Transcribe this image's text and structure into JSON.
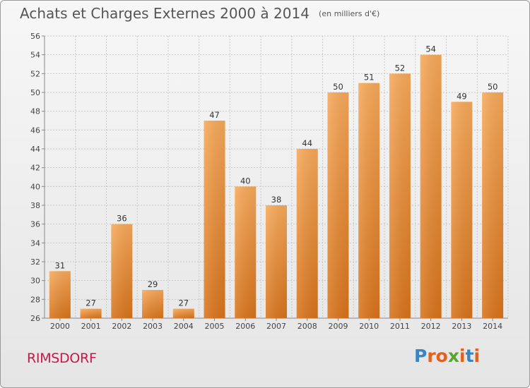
{
  "title": "Achats et Charges Externes 2000 à 2014",
  "subtitle": "(en milliers d'€)",
  "location": "RIMSDORF",
  "logo": {
    "letters": [
      "P",
      "r",
      "o",
      "x",
      "i",
      "t",
      "i"
    ],
    "colors": [
      "#3a84c4",
      "#e0621e",
      "#e0621e",
      "#5aa532",
      "#e0621e",
      "#3a84c4",
      "#e0621e"
    ]
  },
  "colors": {
    "bar_light": "#f7a95a",
    "bar_dark": "#d8741c",
    "grid": "#c8c8c8",
    "title": "#555555",
    "location": "#c8174b"
  },
  "chart_data": {
    "type": "bar",
    "categories": [
      "2000",
      "2001",
      "2002",
      "2003",
      "2004",
      "2005",
      "2006",
      "2007",
      "2008",
      "2009",
      "2010",
      "2011",
      "2012",
      "2013",
      "2014"
    ],
    "values": [
      31,
      27,
      36,
      29,
      27,
      47,
      40,
      38,
      44,
      50,
      51,
      52,
      54,
      49,
      50
    ],
    "title": "Achats et Charges Externes 2000 à 2014",
    "subtitle": "(en milliers d'€)",
    "xlabel": "",
    "ylabel": "",
    "ylim": [
      26,
      56
    ],
    "yticks": [
      26,
      28,
      30,
      32,
      34,
      36,
      38,
      40,
      42,
      44,
      46,
      48,
      50,
      52,
      54,
      56
    ],
    "grid": true,
    "data_labels": true
  }
}
